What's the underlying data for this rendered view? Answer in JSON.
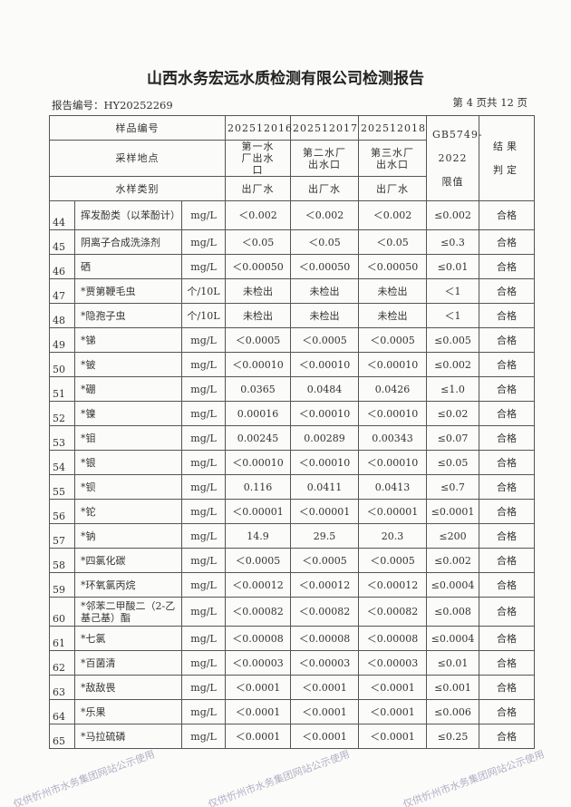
{
  "title": "山西水务宏远水质检测有限公司检测报告",
  "report_no": "报告编号：HY20252269",
  "page_no": "第 4 页共 12 页",
  "watermark": "仅供忻州市水务集团网站公示使用",
  "header": {
    "sample_no_label": "样品编号",
    "sample_nos": [
      "202512016",
      "202512017",
      "202512018"
    ],
    "location_label": "采样地点",
    "locations": [
      "第一水厂出水口",
      "第二水厂出水口",
      "第三水厂出水口"
    ],
    "type_label": "水样类别",
    "types": [
      "出厂水",
      "出厂水",
      "出厂水"
    ],
    "limit_label": "GB5749-2022 限值",
    "result_label": "结果判定"
  },
  "rows": [
    {
      "no": "44",
      "item": "挥发酚类（以苯酚计）",
      "unit": "mg/L",
      "v": [
        "＜0.002",
        "＜0.002",
        "＜0.002"
      ],
      "limit": "≤0.002",
      "result": "合格"
    },
    {
      "no": "45",
      "item": "阴离子合成洗涤剂",
      "unit": "mg/L",
      "v": [
        "＜0.05",
        "＜0.05",
        "＜0.05"
      ],
      "limit": "≤0.3",
      "result": "合格"
    },
    {
      "no": "46",
      "item": "硒",
      "unit": "mg/L",
      "v": [
        "＜0.00050",
        "＜0.00050",
        "＜0.00050"
      ],
      "limit": "≤0.01",
      "result": "合格"
    },
    {
      "no": "47",
      "item": "*贾第鞭毛虫",
      "unit": "个/10L",
      "v": [
        "未检出",
        "未检出",
        "未检出"
      ],
      "limit": "＜1",
      "result": "合格"
    },
    {
      "no": "48",
      "item": "*隐孢子虫",
      "unit": "个/10L",
      "v": [
        "未检出",
        "未检出",
        "未检出"
      ],
      "limit": "＜1",
      "result": "合格"
    },
    {
      "no": "49",
      "item": "*锑",
      "unit": "mg/L",
      "v": [
        "＜0.0005",
        "＜0.0005",
        "＜0.0005"
      ],
      "limit": "≤0.005",
      "result": "合格"
    },
    {
      "no": "50",
      "item": "*铍",
      "unit": "mg/L",
      "v": [
        "＜0.00010",
        "＜0.00010",
        "＜0.00010"
      ],
      "limit": "≤0.002",
      "result": "合格"
    },
    {
      "no": "51",
      "item": "*硼",
      "unit": "mg/L",
      "v": [
        "0.0365",
        "0.0484",
        "0.0426"
      ],
      "limit": "≤1.0",
      "result": "合格"
    },
    {
      "no": "52",
      "item": "*镍",
      "unit": "mg/L",
      "v": [
        "0.00016",
        "＜0.00010",
        "＜0.00010"
      ],
      "limit": "≤0.02",
      "result": "合格"
    },
    {
      "no": "53",
      "item": "*钼",
      "unit": "mg/L",
      "v": [
        "0.00245",
        "0.00289",
        "0.00343"
      ],
      "limit": "≤0.07",
      "result": "合格"
    },
    {
      "no": "54",
      "item": "*银",
      "unit": "mg/L",
      "v": [
        "＜0.00010",
        "＜0.00010",
        "＜0.00010"
      ],
      "limit": "≤0.05",
      "result": "合格"
    },
    {
      "no": "55",
      "item": "*钡",
      "unit": "mg/L",
      "v": [
        "0.116",
        "0.0411",
        "0.0413"
      ],
      "limit": "≤0.7",
      "result": "合格"
    },
    {
      "no": "56",
      "item": "*铊",
      "unit": "mg/L",
      "v": [
        "＜0.00001",
        "＜0.00001",
        "＜0.00001"
      ],
      "limit": "≤0.0001",
      "result": "合格"
    },
    {
      "no": "57",
      "item": "*钠",
      "unit": "mg/L",
      "v": [
        "14.9",
        "29.5",
        "20.3"
      ],
      "limit": "≤200",
      "result": "合格"
    },
    {
      "no": "58",
      "item": "*四氯化碳",
      "unit": "mg/L",
      "v": [
        "＜0.0005",
        "＜0.0005",
        "＜0.0005"
      ],
      "limit": "≤0.002",
      "result": "合格"
    },
    {
      "no": "59",
      "item": "*环氧氯丙烷",
      "unit": "mg/L",
      "v": [
        "＜0.00012",
        "＜0.00012",
        "＜0.00012"
      ],
      "limit": "≤0.0004",
      "result": "合格"
    },
    {
      "no": "60",
      "item": "*邻苯二甲酸二（2-乙基己基）酯",
      "unit": "mg/L",
      "v": [
        "＜0.00082",
        "＜0.00082",
        "＜0.00082"
      ],
      "limit": "≤0.008",
      "result": "合格"
    },
    {
      "no": "61",
      "item": "*七氯",
      "unit": "mg/L",
      "v": [
        "＜0.00008",
        "＜0.00008",
        "＜0.00008"
      ],
      "limit": "≤0.0004",
      "result": "合格"
    },
    {
      "no": "62",
      "item": "*百菌清",
      "unit": "mg/L",
      "v": [
        "＜0.00003",
        "＜0.00003",
        "＜0.00003"
      ],
      "limit": "≤0.01",
      "result": "合格"
    },
    {
      "no": "63",
      "item": "*敌敌畏",
      "unit": "mg/L",
      "v": [
        "＜0.0001",
        "＜0.0001",
        "＜0.0001"
      ],
      "limit": "≤0.001",
      "result": "合格"
    },
    {
      "no": "64",
      "item": "*乐果",
      "unit": "mg/L",
      "v": [
        "＜0.0001",
        "＜0.0001",
        "＜0.0001"
      ],
      "limit": "≤0.006",
      "result": "合格"
    },
    {
      "no": "65",
      "item": "*马拉硫磷",
      "unit": "mg/L",
      "v": [
        "＜0.0001",
        "＜0.0001",
        "＜0.0001"
      ],
      "limit": "≤0.25",
      "result": "合格"
    }
  ]
}
